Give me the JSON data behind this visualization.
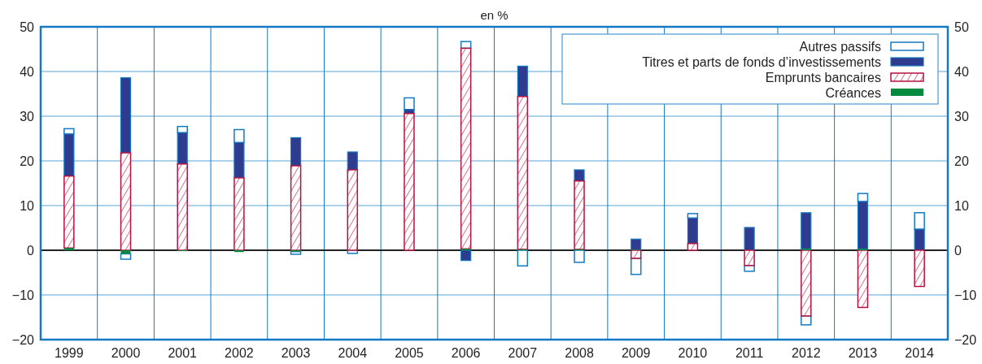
{
  "chart_data": {
    "type": "bar",
    "subtitle": "en %",
    "stacked": true,
    "categories": [
      "1999",
      "2000",
      "2001",
      "2002",
      "2003",
      "2004",
      "2005",
      "2006",
      "2007",
      "2008",
      "2009",
      "2010",
      "2011",
      "2012",
      "2013",
      "2014"
    ],
    "series": [
      {
        "name": "Créances",
        "color": "#008a3e",
        "values": [
          0.5,
          -0.8,
          -0.2,
          -0.4,
          -0.3,
          0,
          0,
          0.3,
          0.2,
          0.2,
          0.1,
          0,
          0,
          0.3,
          0.3,
          0
        ]
      },
      {
        "name": "Emprunts bancaires",
        "color": "#b5123f",
        "values": [
          16.1,
          21.8,
          19.3,
          16.2,
          18.9,
          18.0,
          30.6,
          44.9,
          34.2,
          15.3,
          -1.8,
          1.5,
          -3.4,
          -14.7,
          -12.8,
          -8.1
        ]
      },
      {
        "name": "Titres et parts de fonds d’investissements",
        "color": "#2e3b8f",
        "values": [
          9.4,
          16.8,
          7.0,
          7.9,
          6.3,
          4.0,
          0.9,
          -2.3,
          6.8,
          2.5,
          2.4,
          5.7,
          5.1,
          8.1,
          10.6,
          4.7
        ]
      },
      {
        "name": "Autres passifs",
        "color": "#1479c4",
        "values": [
          1.2,
          -1.2,
          1.4,
          2.9,
          -0.6,
          -0.7,
          2.6,
          1.5,
          -3.5,
          -2.7,
          -3.6,
          1.0,
          -1.3,
          -2.0,
          1.8,
          3.7
        ]
      }
    ],
    "ylim": [
      -20,
      50
    ],
    "yticks": [
      -20,
      -10,
      0,
      10,
      20,
      30,
      40,
      50
    ],
    "y2lim": [
      -20,
      50
    ],
    "y2ticks": [
      -20,
      -10,
      0,
      10,
      20,
      30,
      40,
      50
    ],
    "grid": true,
    "legend": "top right"
  }
}
